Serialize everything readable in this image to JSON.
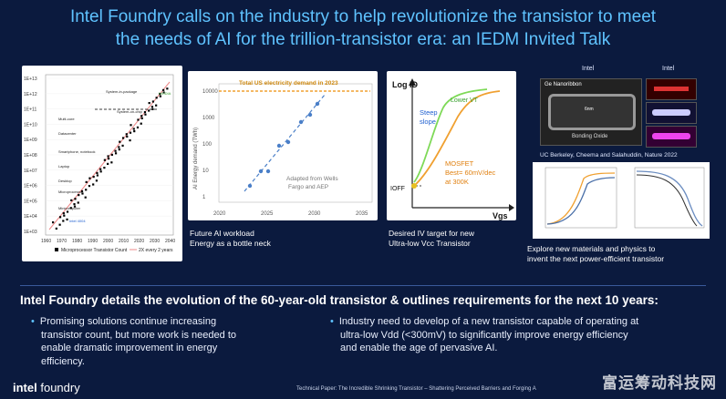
{
  "slide": {
    "title_line1": "Intel Foundry calls on the industry to help revolutionize the transistor to meet",
    "title_line2": "the needs of AI for the trillion-transistor era: an IEDM Invited Talk"
  },
  "panels": {
    "moore": {
      "y_ticks": [
        "1E+13",
        "1E+12",
        "1E+11",
        "1E+10",
        "1E+09",
        "1E+08",
        "1E+07",
        "1E+06",
        "1E+05",
        "1E+04",
        "1E+03"
      ],
      "x_ticks": [
        "1960",
        "1970",
        "1980",
        "1990",
        "2000",
        "2010",
        "2020",
        "2030",
        "2040"
      ],
      "annotations": [
        "System-in-package",
        "System-on-chip",
        "NVIDIA",
        "Multi-core",
        "Datacenter",
        "Smartphone, notebook",
        "Laptop",
        "Desktop",
        "Microprocessor",
        "Minicomputer",
        "Intel 4004"
      ],
      "legend_count": "Microprocessor Transistor Count",
      "legend_trend": "2X every 2 years"
    },
    "energy": {
      "banner": "Total US electricity demand in 2023",
      "ylabel": "AI Energy demand (TWh)",
      "y_ticks": [
        "10000",
        "1000",
        "100",
        "10",
        "1"
      ],
      "x_ticks": [
        "2020",
        "2025",
        "2030",
        "2035"
      ],
      "note_line1": "Adapted from Wells",
      "note_line2": "Fargo and AEP",
      "caption_line1": "Future AI workload",
      "caption_line2": "Energy as a bottle neck"
    },
    "iv": {
      "ylabel": "Log ID",
      "xlabel": "Vgs",
      "steep_line1": "Steep",
      "steep_line2": "slope",
      "lower_vt": "Lower VT",
      "mosfet_line1": "MOSFET",
      "mosfet_line2": "Best= 60mV/dec",
      "mosfet_line3": "at 300K",
      "ioff": "IOFF",
      "caption_line1": "Desired IV target for new",
      "caption_line2": "Ultra-low Vcc Transistor"
    },
    "materials": {
      "label_intel_left": "Intel",
      "label_intel_right": "Intel",
      "nanoribbon": "Ge Nanoribbon",
      "scale": "6nm",
      "bonding": "Bonding Oxide",
      "credit": "UC Berkeley, Cheema and Salahuddin, Nature 2022",
      "caption_line1": "Explore new materials and physics to",
      "caption_line2": "invent the next power-efficient transistor"
    }
  },
  "details": {
    "heading": "Intel Foundry details the evolution of the 60-year-old transistor & outlines requirements for the next 10 years:",
    "bullets_left": [
      "Promising solutions continue increasing",
      "transistor count, but more work is needed to",
      "enable dramatic improvement in energy",
      "efficiency."
    ],
    "bullets_right": [
      "Industry need to develop of a new transistor capable of operating at",
      "ultra-low Vdd (<300mV) to significantly improve energy efficiency",
      "and enable the age of pervasive AI."
    ]
  },
  "footer": {
    "logo_a": "intel",
    "logo_b": "foundry",
    "note": "Technical Paper: The Incredible Shrinking Transistor – Shattering Perceived Barriers and Forging A",
    "watermark": "富运筹动科技网"
  },
  "colors": {
    "title": "#5fc3ff",
    "background": "#0b1a3e",
    "accent_orange": "#f0a030",
    "accent_green": "#7ed957"
  }
}
